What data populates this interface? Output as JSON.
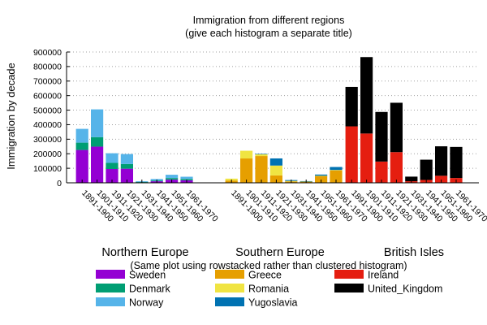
{
  "chart_data": {
    "type": "bar",
    "stacked": true,
    "title": [
      "Immigration from different regions",
      "(give each histogram a separate title)"
    ],
    "xlabel": "",
    "ylabel": "Immigration by decade",
    "ylim": [
      0,
      900000
    ],
    "yticks": [
      0,
      100000,
      200000,
      300000,
      400000,
      500000,
      600000,
      700000,
      800000,
      900000
    ],
    "grid": "horizontal-dotted",
    "note": "(Same plot using rowstacked rather than clustered histogram)",
    "categories": [
      "1891-1900",
      "1901-1910",
      "1911-1920",
      "1921-1930",
      "1931-1940",
      "1941-1950",
      "1951-1960",
      "1961-1970"
    ],
    "groups": [
      {
        "name": "Northern Europe",
        "series": [
          {
            "name": "Sweden",
            "color": "#9400d3",
            "values": [
              226000,
              249000,
              95000,
              97000,
              3900,
              10700,
              21700,
              17100
            ]
          },
          {
            "name": "Denmark",
            "color": "#009e73",
            "values": [
              50200,
              65300,
              41900,
              32400,
              2600,
              5400,
              10900,
              9200
            ]
          },
          {
            "name": "Norway",
            "color": "#56b4e9",
            "values": [
              95000,
              191000,
              66400,
              68500,
              4700,
              10100,
              22900,
              15500
            ]
          }
        ]
      },
      {
        "name": "Southern Europe",
        "series": [
          {
            "name": "Greece",
            "color": "#e69f00",
            "values": [
              15900,
              167500,
              184200,
              51100,
              9100,
              8900,
              47600,
              85900
            ]
          },
          {
            "name": "Romania",
            "color": "#f0e442",
            "values": [
              12800,
              53000,
              13300,
              67600,
              3900,
              1100,
              1000,
              2500
            ]
          },
          {
            "name": "Yugoslavia",
            "color": "#0072b2",
            "values": [
              0,
              0,
              1900,
              49100,
              5800,
              1600,
              8200,
              20400
            ]
          }
        ]
      },
      {
        "name": "British Isles",
        "series": [
          {
            "name": "Ireland",
            "color": "#e51e10",
            "values": [
              388400,
              339100,
              146200,
              211200,
              10900,
              19800,
              48400,
              33000
            ]
          },
          {
            "name": "United_Kingdom",
            "color": "#000000",
            "values": [
              271500,
              526000,
              341400,
              339600,
              31600,
              139300,
              202800,
              213800
            ]
          }
        ]
      }
    ]
  }
}
